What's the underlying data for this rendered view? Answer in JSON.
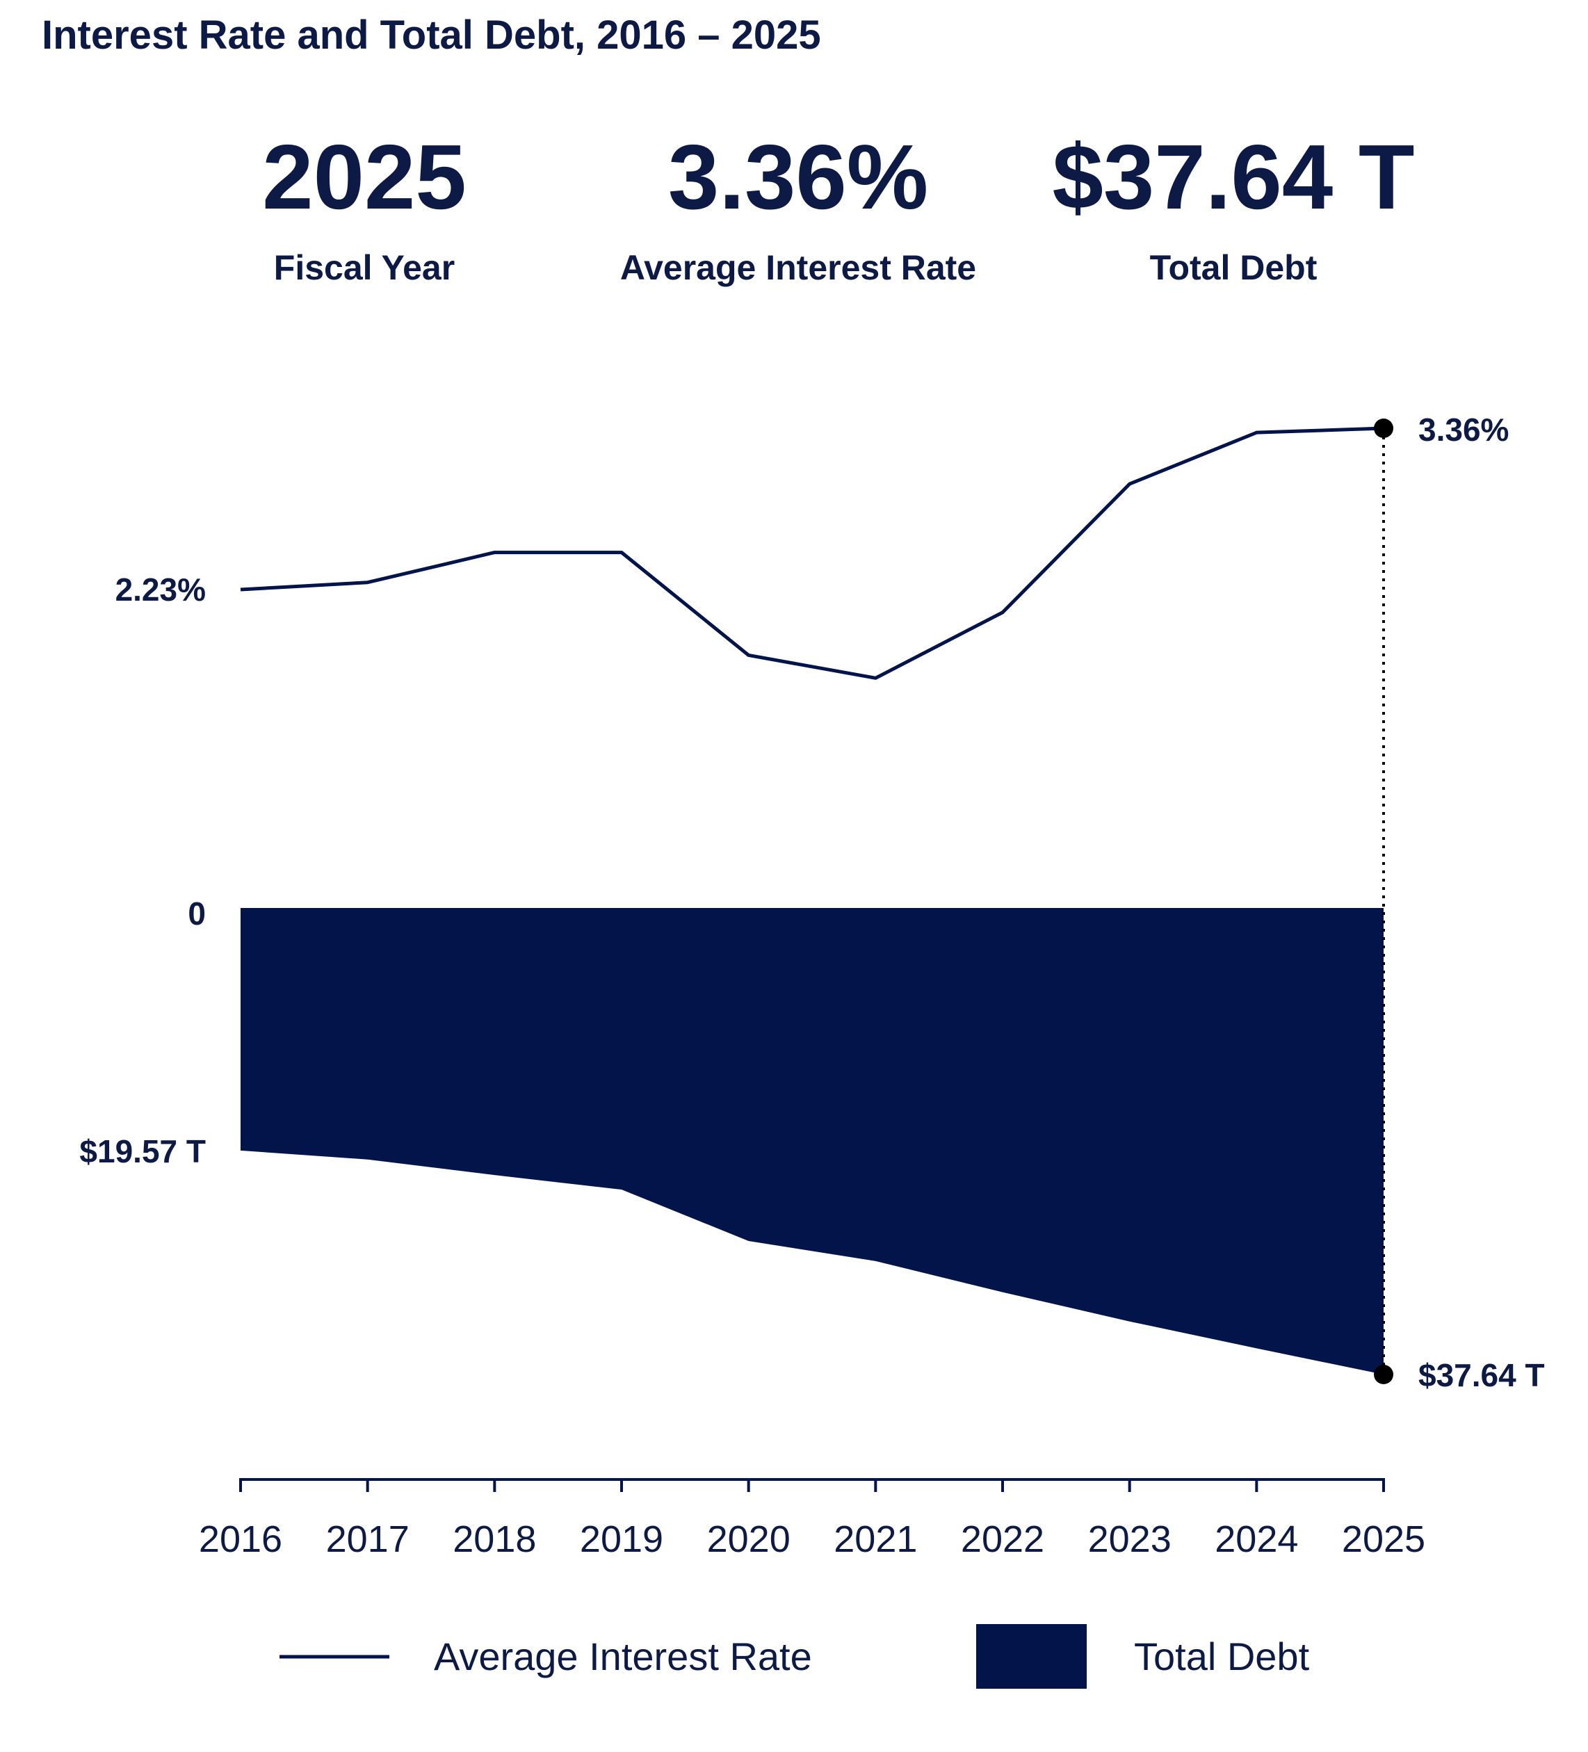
{
  "title": "Interest Rate and Total Debt, 2016 – 2025",
  "stats": [
    {
      "value": "2025",
      "label": "Fiscal Year"
    },
    {
      "value": "3.36%",
      "label": "Average Interest Rate"
    },
    {
      "value": "$37.64 T",
      "label": "Total Debt"
    }
  ],
  "colors": {
    "navy": "#02144a",
    "text": "#0c1a45",
    "marker": "#000000"
  },
  "chart_data": {
    "type": "line+area",
    "title": "Interest Rate and Total Debt, 2016 – 2025",
    "categories": [
      "2016",
      "2017",
      "2018",
      "2019",
      "2020",
      "2021",
      "2022",
      "2023",
      "2024",
      "2025"
    ],
    "series": [
      {
        "name": "Average Interest Rate",
        "type": "line",
        "unit": "%",
        "values": [
          2.23,
          2.28,
          2.49,
          2.49,
          1.77,
          1.61,
          2.07,
          2.97,
          3.33,
          3.36
        ]
      },
      {
        "name": "Total Debt",
        "type": "area",
        "unit": "T",
        "values": [
          19.57,
          20.29,
          21.55,
          22.72,
          26.87,
          28.49,
          31.0,
          33.36,
          35.53,
          37.64
        ]
      }
    ],
    "labels": {
      "rate_start": "2.23%",
      "rate_end": "3.36%",
      "debt_zero": "0",
      "debt_start": "$19.57 T",
      "debt_end": "$37.64 T"
    },
    "legend": [
      "Average Interest Rate",
      "Total Debt"
    ],
    "legend_position": "bottom",
    "grid": false
  }
}
